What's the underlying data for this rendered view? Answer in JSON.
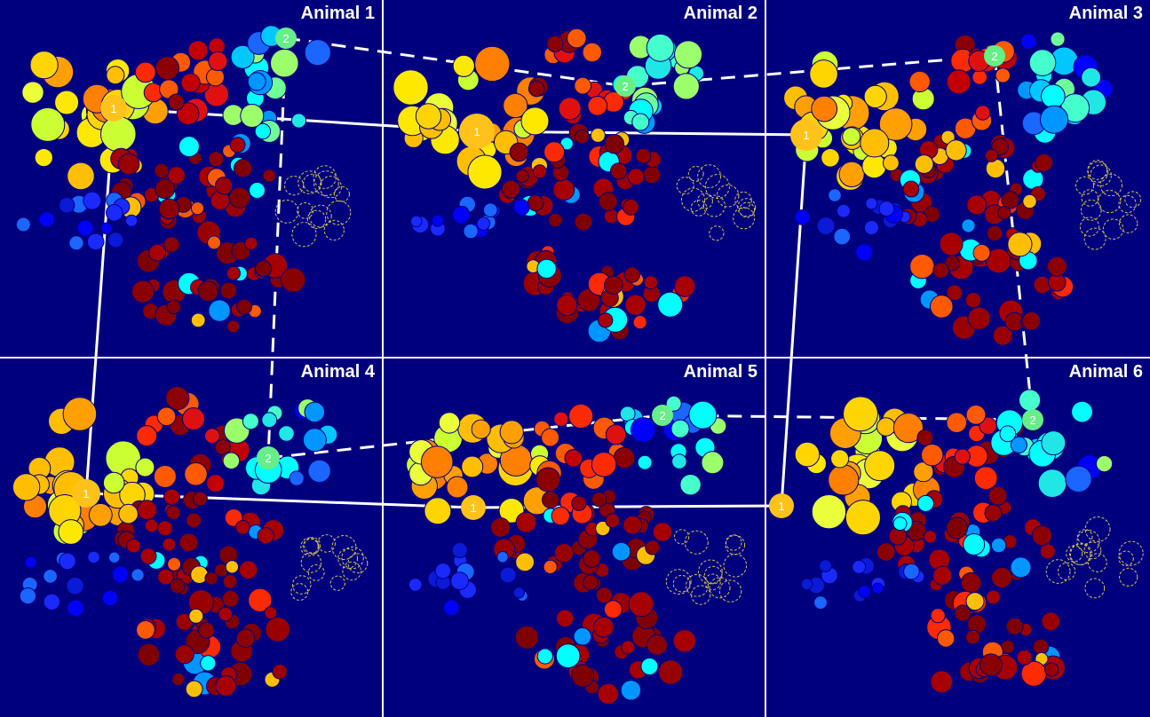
{
  "panels": [
    {
      "title": "Animal 1"
    },
    {
      "title": "Animal 2"
    },
    {
      "title": "Animal 3"
    },
    {
      "title": "Animal 4"
    },
    {
      "title": "Animal 5"
    },
    {
      "title": "Animal 6"
    }
  ],
  "landmarks": {
    "solid_label": "1",
    "dashed_label": "2"
  },
  "colors": {
    "background": "#00007f",
    "divider": "#ffffff",
    "line": "#ffffff",
    "inactive_outline": "#d6c24a"
  }
}
